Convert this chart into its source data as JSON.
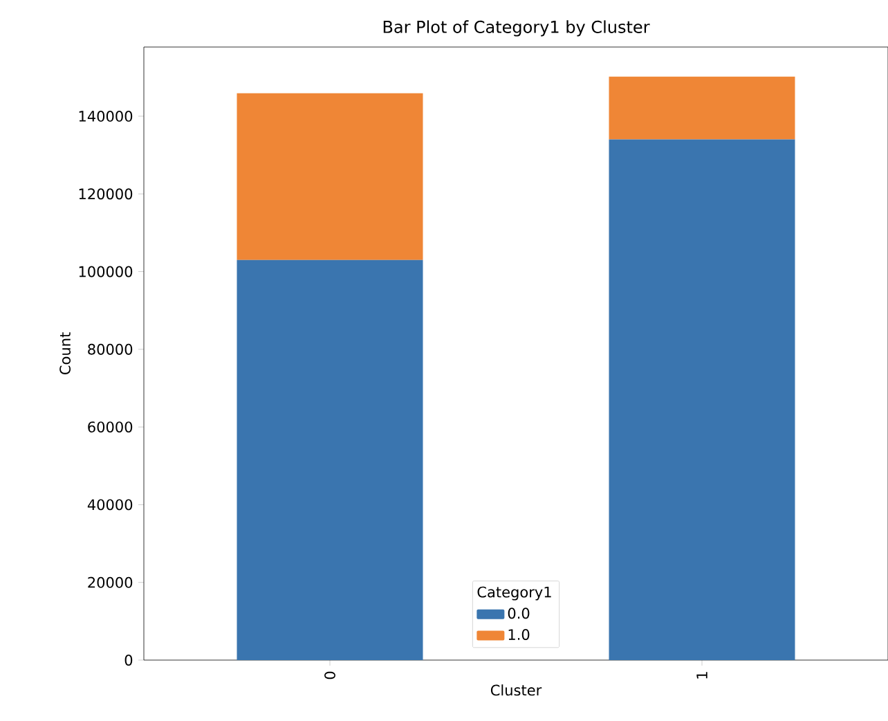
{
  "chart_data": {
    "type": "bar",
    "stacked": true,
    "title": "Bar Plot of Category1 by Cluster",
    "xlabel": "Cluster",
    "ylabel": "Count",
    "legend_title": "Category1",
    "legend": "bottom",
    "categories": [
      "0",
      "1"
    ],
    "series": [
      {
        "name": "0.0",
        "color": "#3a75af",
        "values": [
          103000,
          134000
        ]
      },
      {
        "name": "1.0",
        "color": "#ef8636",
        "values": [
          42900,
          16200
        ]
      }
    ],
    "ylim": [
      0,
      157800
    ],
    "yticks": [
      0,
      20000,
      40000,
      60000,
      80000,
      100000,
      120000,
      140000
    ]
  }
}
